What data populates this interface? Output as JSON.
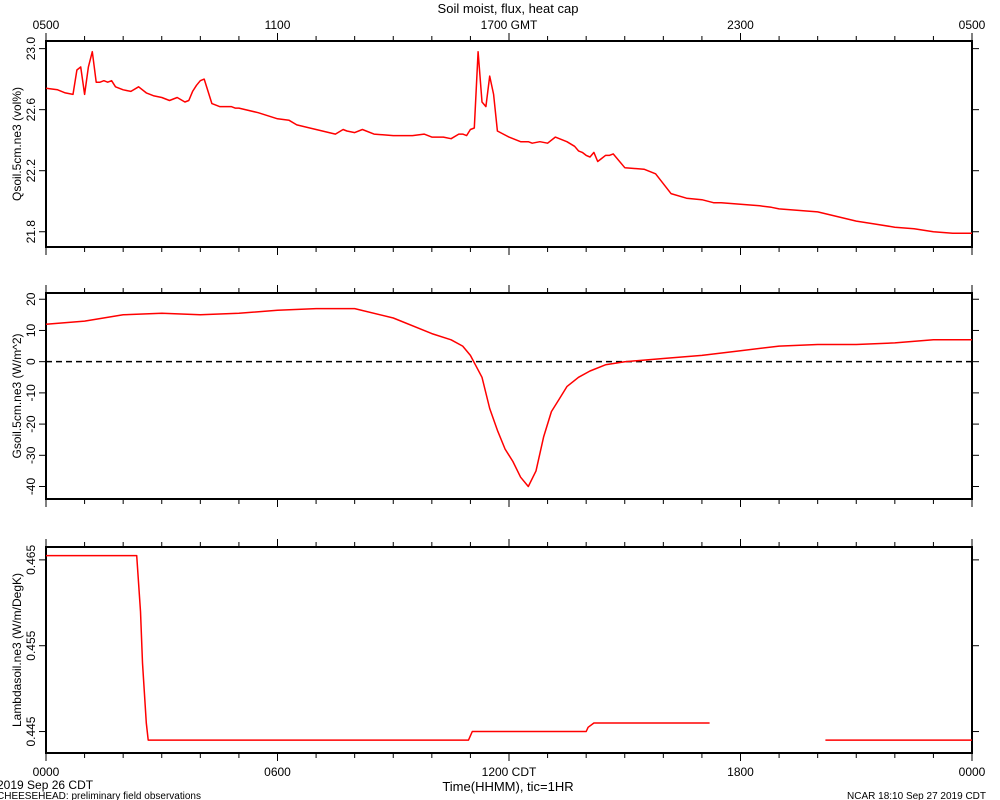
{
  "title": "Soil moist, flux, heat cap",
  "top_axis": {
    "tick_labels": [
      "0500",
      "1100",
      "1700 GMT",
      "2300",
      "0500"
    ]
  },
  "bottom_axis": {
    "tick_labels": [
      "0000",
      "0600",
      "1200 CDT",
      "1800",
      "0000"
    ],
    "xlabel": "Time(HHMM), tic=1HR",
    "start_date": "2019 Sep 26 CDT"
  },
  "footer": {
    "left": "CHEESEHEAD: preliminary field observations",
    "right": "NCAR 18:10 Sep 27 2019 CDT"
  },
  "colors": {
    "series": "#ff0000",
    "axis": "#000000",
    "zero_line": "#000000"
  },
  "chart_data": [
    {
      "type": "line",
      "ylabel": "Qsoil.5cm.ne3 (vol%)",
      "ylim": [
        21.7,
        23.05
      ],
      "yticks": [
        21.8,
        22.2,
        22.6,
        23.0
      ],
      "ytick_labels": [
        "21.8",
        "22.2",
        "22.6",
        "23.0"
      ],
      "xlim": [
        0,
        24
      ],
      "x": [
        0,
        0.3,
        0.5,
        0.7,
        0.8,
        0.9,
        1.0,
        1.1,
        1.2,
        1.3,
        1.4,
        1.5,
        1.6,
        1.7,
        1.8,
        1.9,
        2.0,
        2.2,
        2.4,
        2.6,
        2.7,
        2.8,
        3.0,
        3.2,
        3.4,
        3.6,
        3.7,
        3.8,
        3.9,
        4.0,
        4.1,
        4.3,
        4.5,
        4.7,
        4.8,
        4.9,
        5.0,
        5.5,
        6.0,
        6.3,
        6.5,
        7.0,
        7.5,
        7.7,
        7.8,
        8.0,
        8.2,
        8.5,
        9.0,
        9.5,
        9.8,
        10.0,
        10.3,
        10.5,
        10.7,
        10.8,
        10.9,
        11.0,
        11.1,
        11.2,
        11.3,
        11.4,
        11.5,
        11.6,
        11.7,
        12.0,
        12.3,
        12.5,
        12.6,
        12.8,
        13.0,
        13.2,
        13.5,
        13.7,
        13.8,
        13.9,
        14.0,
        14.1,
        14.2,
        14.3,
        14.4,
        14.5,
        14.6,
        14.7,
        15.0,
        15.5,
        15.8,
        16.2,
        16.6,
        17.0,
        17.3,
        17.5,
        18.0,
        18.5,
        18.8,
        19.0,
        20.0,
        21.0,
        21.5,
        22.0,
        22.5,
        23.0,
        23.5,
        24.0
      ],
      "y": [
        22.74,
        22.73,
        22.71,
        22.7,
        22.86,
        22.88,
        22.7,
        22.88,
        22.98,
        22.78,
        22.78,
        22.79,
        22.78,
        22.79,
        22.75,
        22.74,
        22.73,
        22.72,
        22.75,
        22.71,
        22.7,
        22.69,
        22.68,
        22.66,
        22.68,
        22.65,
        22.66,
        22.72,
        22.76,
        22.79,
        22.8,
        22.64,
        22.62,
        22.62,
        22.62,
        22.61,
        22.61,
        22.58,
        22.54,
        22.53,
        22.5,
        22.47,
        22.44,
        22.47,
        22.46,
        22.45,
        22.47,
        22.44,
        22.43,
        22.43,
        22.44,
        22.42,
        22.42,
        22.41,
        22.44,
        22.44,
        22.43,
        22.47,
        22.48,
        22.98,
        22.65,
        22.62,
        22.82,
        22.7,
        22.46,
        22.42,
        22.39,
        22.39,
        22.38,
        22.39,
        22.38,
        22.42,
        22.39,
        22.36,
        22.33,
        22.32,
        22.3,
        22.29,
        22.32,
        22.26,
        22.28,
        22.3,
        22.3,
        22.31,
        22.22,
        22.21,
        22.18,
        22.05,
        22.02,
        22.01,
        21.99,
        21.99,
        21.98,
        21.97,
        21.96,
        21.95,
        21.93,
        21.87,
        21.85,
        21.83,
        21.82,
        21.8,
        21.79,
        21.79
      ]
    },
    {
      "type": "line",
      "ylabel": "Gsoil.5cm.ne3 (W/m^2)",
      "ylim": [
        -44,
        22
      ],
      "yticks": [
        -40,
        -30,
        -20,
        -10,
        0,
        10,
        20
      ],
      "ytick_labels": [
        "-40",
        "-30",
        "-20",
        "-10",
        "0",
        "10",
        "20"
      ],
      "zero_line": true,
      "xlim": [
        0,
        24
      ],
      "x": [
        0,
        1,
        2,
        3,
        4,
        5,
        6,
        7,
        8,
        9,
        10,
        10.5,
        10.8,
        11.0,
        11.3,
        11.5,
        11.7,
        11.9,
        12.1,
        12.3,
        12.5,
        12.7,
        12.9,
        13.1,
        13.3,
        13.5,
        13.8,
        14.1,
        14.5,
        15.0,
        15.5,
        16.0,
        17.0,
        18.0,
        19.0,
        20.0,
        21.0,
        22.0,
        23.0,
        24.0
      ],
      "y": [
        12,
        13,
        15,
        15.5,
        15,
        15.5,
        16.5,
        17,
        17,
        14,
        9,
        7,
        5,
        2,
        -5,
        -15,
        -22,
        -28,
        -32,
        -37,
        -40,
        -35,
        -24,
        -16,
        -12,
        -8,
        -5,
        -3,
        -1,
        0,
        0.5,
        1,
        2,
        3.5,
        5,
        5.5,
        5.5,
        6,
        7,
        7
      ]
    },
    {
      "type": "line",
      "ylabel": "Lambdasoil.ne3 (W/m/DegK)",
      "ylim": [
        0.4425,
        0.4665
      ],
      "yticks": [
        0.445,
        0.455,
        0.465
      ],
      "ytick_labels": [
        "0.445",
        "0.455",
        "0.465"
      ],
      "xlim": [
        0,
        24
      ],
      "segments": [
        {
          "x": [
            0,
            2.35,
            2.45,
            2.5,
            2.6,
            2.65,
            10.95,
            11.05,
            14.0,
            14.05,
            14.2,
            17.2
          ],
          "y": [
            0.4655,
            0.4655,
            0.459,
            0.453,
            0.446,
            0.444,
            0.444,
            0.445,
            0.445,
            0.4455,
            0.446,
            0.446
          ]
        },
        {
          "x": [
            20.2,
            24.0
          ],
          "y": [
            0.444,
            0.444
          ]
        }
      ]
    }
  ]
}
